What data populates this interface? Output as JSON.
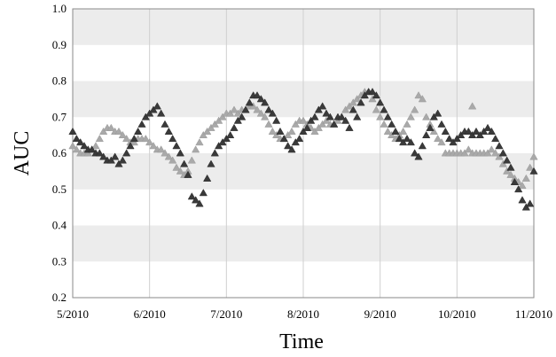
{
  "chart_data": {
    "type": "scatter",
    "xlabel": "Time",
    "ylabel": "AUC",
    "x_ticks": [
      "5/2010",
      "6/2010",
      "7/2010",
      "8/2010",
      "9/2010",
      "10/2010",
      "11/2010"
    ],
    "ylim": [
      0.2,
      1.0
    ],
    "y_ticks": [
      "0.2",
      "0.3",
      "0.4",
      "0.5",
      "0.6",
      "0.7",
      "0.8",
      "0.9",
      "1.0"
    ],
    "grid": true,
    "marker": "triangle",
    "band_color": "#ececec",
    "series": [
      {
        "color": "#3a3a3a",
        "points": [
          [
            0.0,
            0.66
          ],
          [
            0.05,
            0.64
          ],
          [
            0.1,
            0.63
          ],
          [
            0.15,
            0.62
          ],
          [
            0.2,
            0.61
          ],
          [
            0.25,
            0.61
          ],
          [
            0.3,
            0.6
          ],
          [
            0.35,
            0.6
          ],
          [
            0.4,
            0.59
          ],
          [
            0.45,
            0.58
          ],
          [
            0.5,
            0.58
          ],
          [
            0.55,
            0.59
          ],
          [
            0.6,
            0.57
          ],
          [
            0.65,
            0.58
          ],
          [
            0.7,
            0.6
          ],
          [
            0.75,
            0.62
          ],
          [
            0.8,
            0.64
          ],
          [
            0.85,
            0.66
          ],
          [
            0.9,
            0.68
          ],
          [
            0.95,
            0.7
          ],
          [
            1.0,
            0.71
          ],
          [
            1.05,
            0.72
          ],
          [
            1.1,
            0.73
          ],
          [
            1.15,
            0.71
          ],
          [
            1.2,
            0.68
          ],
          [
            1.25,
            0.66
          ],
          [
            1.3,
            0.64
          ],
          [
            1.35,
            0.62
          ],
          [
            1.4,
            0.6
          ],
          [
            1.45,
            0.57
          ],
          [
            1.5,
            0.54
          ],
          [
            1.55,
            0.48
          ],
          [
            1.6,
            0.47
          ],
          [
            1.65,
            0.46
          ],
          [
            1.7,
            0.49
          ],
          [
            1.75,
            0.53
          ],
          [
            1.8,
            0.57
          ],
          [
            1.85,
            0.6
          ],
          [
            1.9,
            0.62
          ],
          [
            1.95,
            0.63
          ],
          [
            2.0,
            0.64
          ],
          [
            2.05,
            0.65
          ],
          [
            2.1,
            0.67
          ],
          [
            2.15,
            0.69
          ],
          [
            2.2,
            0.7
          ],
          [
            2.25,
            0.72
          ],
          [
            2.3,
            0.74
          ],
          [
            2.35,
            0.76
          ],
          [
            2.4,
            0.76
          ],
          [
            2.45,
            0.75
          ],
          [
            2.5,
            0.74
          ],
          [
            2.55,
            0.72
          ],
          [
            2.6,
            0.71
          ],
          [
            2.65,
            0.69
          ],
          [
            2.7,
            0.66
          ],
          [
            2.75,
            0.64
          ],
          [
            2.8,
            0.62
          ],
          [
            2.85,
            0.61
          ],
          [
            2.9,
            0.63
          ],
          [
            2.95,
            0.64
          ],
          [
            3.0,
            0.66
          ],
          [
            3.05,
            0.67
          ],
          [
            3.1,
            0.69
          ],
          [
            3.15,
            0.7
          ],
          [
            3.2,
            0.72
          ],
          [
            3.25,
            0.73
          ],
          [
            3.3,
            0.71
          ],
          [
            3.35,
            0.7
          ],
          [
            3.4,
            0.68
          ],
          [
            3.45,
            0.7
          ],
          [
            3.5,
            0.7
          ],
          [
            3.55,
            0.69
          ],
          [
            3.6,
            0.67
          ],
          [
            3.65,
            0.72
          ],
          [
            3.7,
            0.7
          ],
          [
            3.75,
            0.74
          ],
          [
            3.8,
            0.76
          ],
          [
            3.85,
            0.77
          ],
          [
            3.9,
            0.77
          ],
          [
            3.95,
            0.76
          ],
          [
            4.0,
            0.74
          ],
          [
            4.05,
            0.72
          ],
          [
            4.1,
            0.7
          ],
          [
            4.15,
            0.68
          ],
          [
            4.2,
            0.66
          ],
          [
            4.25,
            0.64
          ],
          [
            4.3,
            0.63
          ],
          [
            4.35,
            0.64
          ],
          [
            4.4,
            0.63
          ],
          [
            4.45,
            0.6
          ],
          [
            4.5,
            0.59
          ],
          [
            4.55,
            0.62
          ],
          [
            4.6,
            0.65
          ],
          [
            4.65,
            0.67
          ],
          [
            4.7,
            0.7
          ],
          [
            4.75,
            0.71
          ],
          [
            4.8,
            0.68
          ],
          [
            4.85,
            0.66
          ],
          [
            4.9,
            0.64
          ],
          [
            4.95,
            0.63
          ],
          [
            5.0,
            0.64
          ],
          [
            5.05,
            0.65
          ],
          [
            5.1,
            0.66
          ],
          [
            5.15,
            0.66
          ],
          [
            5.2,
            0.65
          ],
          [
            5.25,
            0.66
          ],
          [
            5.3,
            0.65
          ],
          [
            5.35,
            0.66
          ],
          [
            5.4,
            0.67
          ],
          [
            5.45,
            0.66
          ],
          [
            5.5,
            0.64
          ],
          [
            5.55,
            0.62
          ],
          [
            5.6,
            0.6
          ],
          [
            5.65,
            0.58
          ],
          [
            5.7,
            0.56
          ],
          [
            5.75,
            0.52
          ],
          [
            5.8,
            0.5
          ],
          [
            5.85,
            0.47
          ],
          [
            5.9,
            0.45
          ],
          [
            5.95,
            0.46
          ],
          [
            6.0,
            0.55
          ]
        ]
      },
      {
        "color": "#a9a9a9",
        "points": [
          [
            0.0,
            0.62
          ],
          [
            0.05,
            0.61
          ],
          [
            0.1,
            0.6
          ],
          [
            0.15,
            0.6
          ],
          [
            0.2,
            0.6
          ],
          [
            0.25,
            0.61
          ],
          [
            0.3,
            0.62
          ],
          [
            0.35,
            0.64
          ],
          [
            0.4,
            0.66
          ],
          [
            0.45,
            0.67
          ],
          [
            0.5,
            0.67
          ],
          [
            0.55,
            0.66
          ],
          [
            0.6,
            0.66
          ],
          [
            0.65,
            0.65
          ],
          [
            0.7,
            0.64
          ],
          [
            0.75,
            0.63
          ],
          [
            0.8,
            0.63
          ],
          [
            0.85,
            0.64
          ],
          [
            0.9,
            0.64
          ],
          [
            0.95,
            0.64
          ],
          [
            1.0,
            0.63
          ],
          [
            1.05,
            0.62
          ],
          [
            1.1,
            0.61
          ],
          [
            1.15,
            0.61
          ],
          [
            1.2,
            0.6
          ],
          [
            1.25,
            0.59
          ],
          [
            1.3,
            0.58
          ],
          [
            1.35,
            0.56
          ],
          [
            1.4,
            0.55
          ],
          [
            1.45,
            0.54
          ],
          [
            1.5,
            0.55
          ],
          [
            1.55,
            0.58
          ],
          [
            1.6,
            0.61
          ],
          [
            1.65,
            0.63
          ],
          [
            1.7,
            0.65
          ],
          [
            1.75,
            0.66
          ],
          [
            1.8,
            0.67
          ],
          [
            1.85,
            0.68
          ],
          [
            1.9,
            0.69
          ],
          [
            1.95,
            0.7
          ],
          [
            2.0,
            0.71
          ],
          [
            2.05,
            0.71
          ],
          [
            2.1,
            0.72
          ],
          [
            2.15,
            0.71
          ],
          [
            2.2,
            0.72
          ],
          [
            2.25,
            0.72
          ],
          [
            2.3,
            0.73
          ],
          [
            2.35,
            0.73
          ],
          [
            2.4,
            0.72
          ],
          [
            2.45,
            0.71
          ],
          [
            2.5,
            0.7
          ],
          [
            2.55,
            0.68
          ],
          [
            2.6,
            0.66
          ],
          [
            2.65,
            0.65
          ],
          [
            2.7,
            0.64
          ],
          [
            2.75,
            0.64
          ],
          [
            2.8,
            0.65
          ],
          [
            2.85,
            0.66
          ],
          [
            2.9,
            0.68
          ],
          [
            2.95,
            0.69
          ],
          [
            3.0,
            0.69
          ],
          [
            3.05,
            0.68
          ],
          [
            3.1,
            0.67
          ],
          [
            3.15,
            0.66
          ],
          [
            3.2,
            0.67
          ],
          [
            3.25,
            0.68
          ],
          [
            3.3,
            0.69
          ],
          [
            3.35,
            0.68
          ],
          [
            3.4,
            0.68
          ],
          [
            3.45,
            0.69
          ],
          [
            3.5,
            0.7
          ],
          [
            3.55,
            0.72
          ],
          [
            3.6,
            0.73
          ],
          [
            3.65,
            0.74
          ],
          [
            3.7,
            0.75
          ],
          [
            3.75,
            0.76
          ],
          [
            3.8,
            0.77
          ],
          [
            3.85,
            0.77
          ],
          [
            3.9,
            0.75
          ],
          [
            3.95,
            0.72
          ],
          [
            4.0,
            0.7
          ],
          [
            4.05,
            0.68
          ],
          [
            4.1,
            0.66
          ],
          [
            4.15,
            0.65
          ],
          [
            4.2,
            0.64
          ],
          [
            4.25,
            0.65
          ],
          [
            4.3,
            0.66
          ],
          [
            4.35,
            0.68
          ],
          [
            4.4,
            0.7
          ],
          [
            4.45,
            0.72
          ],
          [
            4.5,
            0.76
          ],
          [
            4.55,
            0.75
          ],
          [
            4.6,
            0.7
          ],
          [
            4.65,
            0.68
          ],
          [
            4.7,
            0.66
          ],
          [
            4.75,
            0.64
          ],
          [
            4.8,
            0.63
          ],
          [
            4.85,
            0.6
          ],
          [
            4.9,
            0.6
          ],
          [
            4.95,
            0.6
          ],
          [
            5.0,
            0.6
          ],
          [
            5.05,
            0.6
          ],
          [
            5.1,
            0.6
          ],
          [
            5.15,
            0.61
          ],
          [
            5.2,
            0.6
          ],
          [
            5.25,
            0.6
          ],
          [
            5.3,
            0.6
          ],
          [
            5.35,
            0.6
          ],
          [
            5.4,
            0.6
          ],
          [
            5.45,
            0.61
          ],
          [
            5.5,
            0.6
          ],
          [
            5.55,
            0.59
          ],
          [
            5.6,
            0.57
          ],
          [
            5.65,
            0.55
          ],
          [
            5.7,
            0.54
          ],
          [
            5.75,
            0.53
          ],
          [
            5.8,
            0.52
          ],
          [
            5.85,
            0.51
          ],
          [
            5.9,
            0.53
          ],
          [
            5.95,
            0.56
          ],
          [
            6.0,
            0.59
          ],
          [
            5.2,
            0.73
          ]
        ]
      }
    ]
  }
}
